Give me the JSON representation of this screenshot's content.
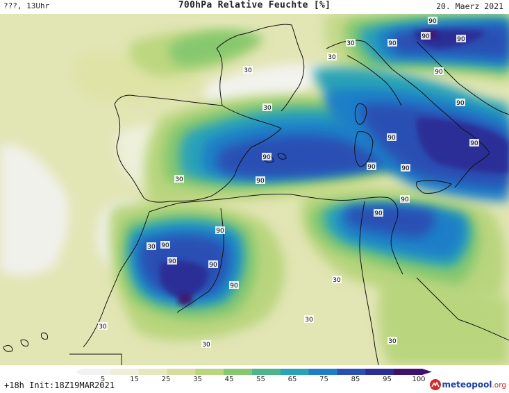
{
  "header": {
    "left": "???, 13Uhr",
    "title": "700hPa Relative Feuchte [%]",
    "date": "20. Maerz 2021"
  },
  "footer": {
    "init": "+18h Init:18Z19MAR2021",
    "logo_name": "meteopool",
    "logo_tld": ".org"
  },
  "legend": {
    "ticks": [
      "5",
      "15",
      "25",
      "35",
      "45",
      "55",
      "65",
      "75",
      "85",
      "95",
      "100"
    ],
    "colors": [
      "#f2f2f2",
      "#efeed8",
      "#e7e7be",
      "#d6dc9e",
      "#b9d57e",
      "#86c86e",
      "#4db58c",
      "#2aa3b7",
      "#1e7fc8",
      "#2a4fb4",
      "#2a2e96",
      "#40126e"
    ]
  },
  "contour_labels": [
    "30",
    "30",
    "30",
    "30",
    "30",
    "30",
    "30",
    "30",
    "30",
    "30",
    "30",
    "90",
    "90",
    "90",
    "90",
    "90",
    "90",
    "90",
    "90",
    "90",
    "90",
    "90",
    "90",
    "90",
    "90",
    "90",
    "90",
    "90",
    "90",
    "90"
  ]
}
